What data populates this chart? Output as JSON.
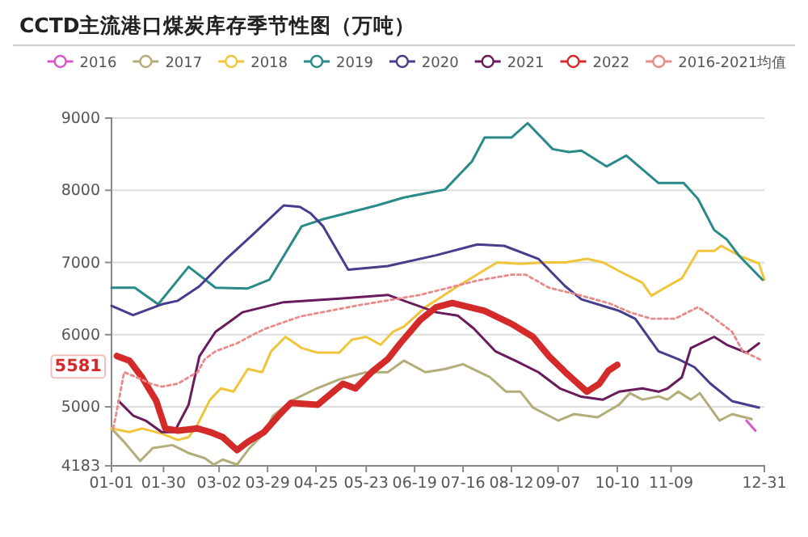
{
  "chart_data": {
    "type": "line",
    "title": "CCTD主流港口煤炭库存季节性图（万吨）",
    "legend": "top",
    "grid": "y",
    "xlim": [
      "--01-01",
      "--12-31"
    ],
    "xticks": [
      {
        "value": "--01-01",
        "label": "01-01"
      },
      {
        "value": "--01-30",
        "label": "01-30"
      },
      {
        "value": "--03-02",
        "label": "03-02"
      },
      {
        "value": "--03-29",
        "label": "03-29"
      },
      {
        "value": "--04-25",
        "label": "04-25"
      },
      {
        "value": "--05-23",
        "label": "05-23"
      },
      {
        "value": "--06-19",
        "label": "06-19"
      },
      {
        "value": "--07-16",
        "label": "07-16"
      },
      {
        "value": "--08-12",
        "label": "08-12"
      },
      {
        "value": "--09-07",
        "label": "09-07"
      },
      {
        "value": "--10-10",
        "label": "10-10"
      },
      {
        "value": "--11-09",
        "label": "11-09"
      },
      {
        "value": "--12-31",
        "label": "12-31"
      }
    ],
    "ylim": [
      4183,
      9000
    ],
    "yticks": [
      4183,
      5000,
      6000,
      7000,
      8000,
      9000
    ],
    "annotations": [
      "5581"
    ],
    "series": [
      {
        "name": "2016",
        "color": "#d35ac8",
        "x": [
          "--12-21",
          "--12-26"
        ],
        "values": [
          4810,
          4670
        ]
      },
      {
        "name": "2017",
        "color": "#b3ad7a",
        "x": [
          "--01-01",
          "--01-08",
          "--01-17",
          "--01-24",
          "--02-04",
          "--02-13",
          "--02-22",
          "--02-27",
          "--03-04",
          "--03-12",
          "--03-19",
          "--03-27",
          "--04-01",
          "--04-11",
          "--04-25",
          "--05-08",
          "--05-23",
          "--06-04",
          "--06-13",
          "--06-25",
          "--07-06",
          "--07-16",
          "--07-31",
          "--08-09",
          "--08-17",
          "--08-24",
          "--09-07",
          "--09-16",
          "--09-29",
          "--10-11",
          "--10-17",
          "--10-24",
          "--11-02",
          "--11-07",
          "--11-13",
          "--11-20",
          "--11-25",
          "--12-06",
          "--12-13",
          "--12-24"
        ],
        "values": [
          4700,
          4515,
          4250,
          4430,
          4470,
          4360,
          4290,
          4200,
          4270,
          4200,
          4430,
          4630,
          4875,
          5080,
          5250,
          5380,
          5480,
          5480,
          5640,
          5480,
          5525,
          5590,
          5410,
          5210,
          5210,
          4990,
          4810,
          4900,
          4855,
          5030,
          5190,
          5100,
          5145,
          5100,
          5210,
          5100,
          5190,
          4810,
          4900,
          4830
        ]
      },
      {
        "name": "2018",
        "color": "#f0c53c",
        "x": [
          "--01-01",
          "--01-11",
          "--01-18",
          "--01-29",
          "--02-07",
          "--02-13",
          "--02-18",
          "--02-25",
          "--03-03",
          "--03-10",
          "--03-18",
          "--03-26",
          "--03-31",
          "--04-08",
          "--04-17",
          "--04-26",
          "--05-08",
          "--05-15",
          "--05-23",
          "--05-31",
          "--06-07",
          "--06-13",
          "--06-25",
          "--07-13",
          "--08-04",
          "--08-17",
          "--08-31",
          "--09-11",
          "--09-23",
          "--10-02",
          "--10-15",
          "--10-24",
          "--10-29",
          "--11-07",
          "--11-15",
          "--11-24",
          "--12-03",
          "--12-07",
          "--12-17",
          "--12-28",
          "--12-31"
        ],
        "values": [
          4700,
          4650,
          4700,
          4630,
          4540,
          4580,
          4760,
          5100,
          5255,
          5210,
          5525,
          5480,
          5770,
          5970,
          5815,
          5750,
          5750,
          5930,
          5970,
          5860,
          6040,
          6110,
          6380,
          6670,
          7000,
          6980,
          7000,
          7000,
          7050,
          7000,
          6830,
          6720,
          6540,
          6670,
          6780,
          7160,
          7160,
          7230,
          7095,
          6985,
          6760
        ]
      },
      {
        "name": "2019",
        "color": "#2a8a8a",
        "x": [
          "--01-01",
          "--01-14",
          "--01-27",
          "--02-13",
          "--02-28",
          "--03-18",
          "--03-30",
          "--04-17",
          "--04-29",
          "--05-29",
          "--06-13",
          "--07-06",
          "--07-21",
          "--07-28",
          "--08-12",
          "--08-21",
          "--09-04",
          "--09-13",
          "--09-20",
          "--10-04",
          "--10-15",
          "--11-02",
          "--11-16",
          "--11-24",
          "--12-03",
          "--12-10",
          "--12-17",
          "--12-30"
        ],
        "values": [
          6650,
          6650,
          6420,
          6940,
          6650,
          6640,
          6760,
          7500,
          7600,
          7790,
          7900,
          8010,
          8400,
          8730,
          8730,
          8930,
          8570,
          8530,
          8550,
          8330,
          8480,
          8100,
          8100,
          7880,
          7450,
          7320,
          7090,
          6760
        ]
      },
      {
        "name": "2020",
        "color": "#463d8c",
        "x": [
          "--01-01",
          "--01-13",
          "--01-29",
          "--02-07",
          "--02-19",
          "--03-06",
          "--03-21",
          "--04-07",
          "--04-16",
          "--04-22",
          "--04-29",
          "--05-13",
          "--06-04",
          "--07-01",
          "--07-24",
          "--08-08",
          "--08-27",
          "--09-11",
          "--09-20",
          "--10-11",
          "--10-20",
          "--11-02",
          "--11-13",
          "--11-22",
          "--12-01",
          "--12-13",
          "--12-28"
        ],
        "values": [
          6400,
          6270,
          6420,
          6470,
          6670,
          7050,
          7390,
          7790,
          7770,
          7680,
          7500,
          6900,
          6950,
          7100,
          7250,
          7230,
          7050,
          6670,
          6490,
          6330,
          6220,
          5770,
          5660,
          5550,
          5320,
          5080,
          4990
        ]
      },
      {
        "name": "2021",
        "color": "#6a1b5c",
        "x": [
          "--01-05",
          "--01-13",
          "--01-20",
          "--01-29",
          "--02-05",
          "--02-13",
          "--02-19",
          "--02-28",
          "--03-09",
          "--03-15",
          "--04-07",
          "--05-08",
          "--06-04",
          "--07-01",
          "--07-13",
          "--07-22",
          "--08-03",
          "--08-15",
          "--08-27",
          "--09-08",
          "--09-20",
          "--10-02",
          "--10-11",
          "--10-24",
          "--11-02",
          "--11-07",
          "--11-15",
          "--11-20",
          "--12-03",
          "--12-10",
          "--12-21",
          "--12-28"
        ],
        "values": [
          5080,
          4880,
          4810,
          4650,
          4650,
          5030,
          5700,
          6040,
          6200,
          6310,
          6450,
          6500,
          6550,
          6310,
          6265,
          6085,
          5770,
          5630,
          5480,
          5255,
          5140,
          5100,
          5210,
          5255,
          5210,
          5255,
          5410,
          5815,
          5970,
          5860,
          5750,
          5880
        ]
      },
      {
        "name": "2022",
        "color": "#d42a2a",
        "x": [
          "--01-04",
          "--01-11",
          "--01-18",
          "--01-26",
          "--01-31",
          "--02-07",
          "--02-18",
          "--02-25",
          "--03-04",
          "--03-12",
          "--03-18",
          "--03-27",
          "--04-04",
          "--04-11",
          "--04-26",
          "--05-10",
          "--05-17",
          "--05-26",
          "--06-04",
          "--06-11",
          "--06-22",
          "--07-01",
          "--07-10",
          "--07-28",
          "--08-12",
          "--08-24",
          "--09-02",
          "--09-11",
          "--09-23",
          "--09-30",
          "--10-05",
          "--10-10"
        ],
        "values": [
          5705,
          5640,
          5410,
          5080,
          4700,
          4670,
          4700,
          4650,
          4580,
          4400,
          4515,
          4650,
          4875,
          5055,
          5030,
          5320,
          5255,
          5480,
          5660,
          5880,
          6200,
          6380,
          6440,
          6330,
          6150,
          5970,
          5700,
          5480,
          5210,
          5320,
          5500,
          5581
        ]
      },
      {
        "name": "2016-2021均值",
        "color": "#e88a8a",
        "line_style": "dotted",
        "x": [
          "--01-02",
          "--01-05",
          "--01-08",
          "--01-15",
          "--01-23",
          "--01-29",
          "--02-07",
          "--02-13",
          "--02-18",
          "--02-22",
          "--02-28",
          "--03-12",
          "--03-21",
          "--03-28",
          "--04-16",
          "--05-17",
          "--06-22",
          "--07-24",
          "--08-12",
          "--08-20",
          "--09-02",
          "--09-20",
          "--10-06",
          "--10-17",
          "--10-29",
          "--11-11",
          "--11-24",
          "--12-01",
          "--12-13",
          "--12-19",
          "--12-30"
        ],
        "values": [
          4700,
          5080,
          5480,
          5410,
          5320,
          5280,
          5320,
          5410,
          5480,
          5660,
          5770,
          5880,
          6000,
          6085,
          6250,
          6400,
          6550,
          6750,
          6830,
          6830,
          6650,
          6540,
          6430,
          6310,
          6220,
          6220,
          6380,
          6265,
          6040,
          5770,
          5640
        ]
      }
    ]
  }
}
